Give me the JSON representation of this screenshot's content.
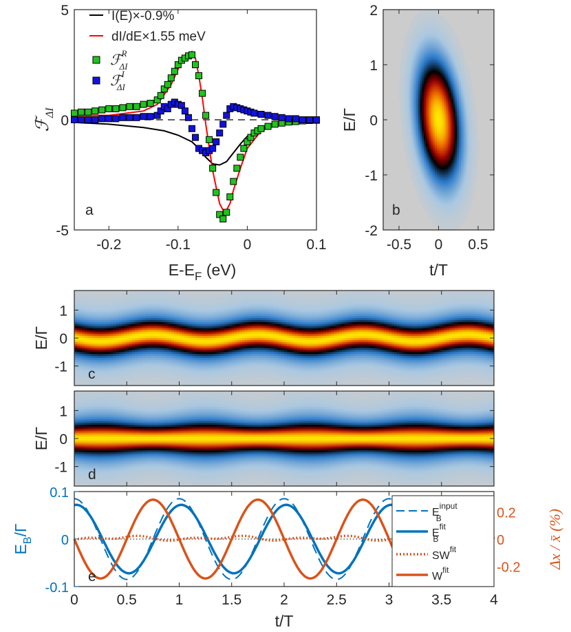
{
  "colors": {
    "black": "#000000",
    "red": "#ff0000",
    "green": "#22c31e",
    "blue": "#1212e0",
    "lineBlue": "#0072bd",
    "orange": "#d95319",
    "dotted": "#000000",
    "heatmapBg": "#cccccc"
  },
  "chart_data": [
    {
      "panel": "a",
      "type": "line+scatter",
      "panel_label": "a",
      "xlabel_prefix": "E-E",
      "xlabel_sub": "F",
      "xlabel_suffix": " (eV)",
      "ylabel_main": "ℱ",
      "ylabel_sub": "ΔI",
      "xlim": [
        -0.25,
        0.1
      ],
      "ylim": [
        -5,
        5
      ],
      "xticks": [
        -0.2,
        -0.1,
        0,
        0.1
      ],
      "xtick_labels": [
        "-0.2",
        "-0.1",
        "0",
        "0.1"
      ],
      "yticks": [
        -5,
        0,
        5
      ],
      "ytick_labels": [
        "-5",
        "0",
        "5"
      ],
      "legend": [
        {
          "label": "I(E)×-0.9%",
          "style": "black-line"
        },
        {
          "label": "dI/dE×1.55 meV",
          "style": "red-line"
        },
        {
          "label": "ℱ",
          "sup": "R",
          "sub": "ΔI",
          "style": "green-square"
        },
        {
          "label": "ℱ",
          "sup": "I",
          "sub": "ΔI",
          "style": "blue-square"
        }
      ],
      "series": [
        {
          "name": "I(E)×-0.9%",
          "x": [
            -0.25,
            -0.2,
            -0.15,
            -0.12,
            -0.1,
            -0.08,
            -0.07,
            -0.06,
            -0.05,
            -0.04,
            -0.03,
            -0.02,
            -0.01,
            0,
            0.02,
            0.05,
            0.1
          ],
          "y": [
            -0.12,
            -0.2,
            -0.35,
            -0.5,
            -0.7,
            -1.0,
            -1.3,
            -1.7,
            -2.0,
            -2.05,
            -1.9,
            -1.5,
            -1.1,
            -0.75,
            -0.4,
            -0.2,
            -0.05
          ]
        },
        {
          "name": "dI/dE×1.55 meV",
          "x": [
            -0.25,
            -0.2,
            -0.15,
            -0.13,
            -0.11,
            -0.1,
            -0.09,
            -0.08,
            -0.075,
            -0.07,
            -0.065,
            -0.06,
            -0.05,
            -0.04,
            -0.035,
            -0.03,
            -0.025,
            -0.02,
            -0.01,
            0,
            0.02,
            0.05,
            0.1
          ],
          "y": [
            0.2,
            0.2,
            0.4,
            0.7,
            1.6,
            2.3,
            2.9,
            3.1,
            2.8,
            2.0,
            1.0,
            -0.2,
            -2.3,
            -3.8,
            -4.1,
            -4.1,
            -3.8,
            -3.2,
            -2.2,
            -1.3,
            -0.5,
            -0.15,
            -0.05
          ]
        },
        {
          "name": "ℱR ΔI",
          "x": [
            -0.25,
            -0.24,
            -0.23,
            -0.22,
            -0.21,
            -0.2,
            -0.19,
            -0.18,
            -0.17,
            -0.16,
            -0.15,
            -0.14,
            -0.13,
            -0.125,
            -0.12,
            -0.115,
            -0.11,
            -0.105,
            -0.1,
            -0.095,
            -0.09,
            -0.085,
            -0.08,
            -0.075,
            -0.07,
            -0.065,
            -0.06,
            -0.055,
            -0.05,
            -0.045,
            -0.04,
            -0.035,
            -0.03,
            -0.025,
            -0.02,
            -0.015,
            -0.01,
            -0.005,
            0,
            0.005,
            0.01,
            0.015,
            0.02,
            0.03,
            0.04,
            0.05,
            0.06,
            0.07,
            0.08,
            0.09,
            0.1
          ],
          "y": [
            0.3,
            0.35,
            0.35,
            0.4,
            0.45,
            0.5,
            0.5,
            0.55,
            0.6,
            0.6,
            0.7,
            0.75,
            0.9,
            1.1,
            1.4,
            1.6,
            1.9,
            2.2,
            2.5,
            2.7,
            2.8,
            2.9,
            2.95,
            2.5,
            2.0,
            1.2,
            0.2,
            -0.9,
            -2.2,
            -3.3,
            -4.3,
            -4.5,
            -4.2,
            -3.5,
            -2.8,
            -2.2,
            -1.7,
            -1.3,
            -1.0,
            -0.8,
            -0.6,
            -0.5,
            -0.4,
            -0.3,
            -0.2,
            -0.15,
            -0.1,
            -0.08,
            -0.05,
            -0.03,
            -0.02
          ]
        },
        {
          "name": "ℱI ΔI",
          "x": [
            -0.25,
            -0.24,
            -0.23,
            -0.22,
            -0.21,
            -0.2,
            -0.19,
            -0.18,
            -0.17,
            -0.16,
            -0.15,
            -0.14,
            -0.13,
            -0.125,
            -0.12,
            -0.115,
            -0.11,
            -0.105,
            -0.1,
            -0.095,
            -0.09,
            -0.085,
            -0.08,
            -0.075,
            -0.07,
            -0.065,
            -0.06,
            -0.055,
            -0.05,
            -0.045,
            -0.04,
            -0.035,
            -0.03,
            -0.025,
            -0.02,
            -0.015,
            -0.01,
            -0.005,
            0,
            0.005,
            0.01,
            0.02,
            0.03,
            0.04,
            0.05,
            0.06,
            0.07,
            0.08,
            0.09,
            0.1
          ],
          "y": [
            0.0,
            0.0,
            0.0,
            0.0,
            0.05,
            0.05,
            0.05,
            0.1,
            0.1,
            0.1,
            0.15,
            0.15,
            0.2,
            0.4,
            0.6,
            0.5,
            0.7,
            0.8,
            0.7,
            0.65,
            0.4,
            0.1,
            -0.4,
            -0.8,
            -1.3,
            -1.4,
            -1.5,
            -1.4,
            -1.3,
            -1.0,
            -0.6,
            -0.2,
            0.2,
            0.5,
            0.6,
            0.55,
            0.5,
            0.45,
            0.4,
            0.35,
            0.3,
            0.25,
            0.2,
            0.15,
            0.1,
            0.05,
            0.05,
            0.0,
            0.0,
            0.0
          ]
        }
      ]
    },
    {
      "panel": "b",
      "type": "heatmap",
      "panel_label": "b",
      "xlabel": "t/T",
      "ylabel": "E/Γ",
      "xlim": [
        -0.7,
        0.7
      ],
      "ylim": [
        -2,
        2
      ],
      "xticks": [
        -0.5,
        0,
        0.5
      ],
      "xtick_labels": [
        "-0.5",
        "0",
        "0.5"
      ],
      "yticks": [
        -2,
        -1,
        0,
        1,
        2
      ],
      "ytick_labels": [
        "-2",
        "-1",
        "0",
        "1",
        "2"
      ],
      "blob": {
        "center_t": 0,
        "center_E": 0,
        "width_t": 0.18,
        "width_E": 0.7,
        "tilt": -0.35
      }
    },
    {
      "panel": "c",
      "type": "heatmap",
      "panel_label": "c",
      "ylabel": "E/Γ",
      "xlim": [
        0,
        4
      ],
      "ylim": [
        -1.7,
        1.7
      ],
      "yticks": [
        -1,
        0,
        1
      ],
      "ytick_labels": [
        "-1",
        "0",
        "1"
      ],
      "band": {
        "amplitude": 0.07,
        "modulation_period": 1,
        "profile": "shift"
      }
    },
    {
      "panel": "d",
      "type": "heatmap",
      "panel_label": "d",
      "ylabel": "E/Γ",
      "xlim": [
        0,
        4
      ],
      "ylim": [
        -1.7,
        1.7
      ],
      "yticks": [
        -1,
        0,
        1
      ],
      "ytick_labels": [
        "-1",
        "0",
        "1"
      ],
      "band": {
        "amplitude": 0.07,
        "modulation_period": 1,
        "profile": "width"
      }
    },
    {
      "panel": "e",
      "type": "line",
      "panel_label": "e",
      "xlabel": "t/T",
      "ylabel_left_main": "E",
      "ylabel_left_sub": "B",
      "ylabel_left_suffix": "/Γ",
      "ylabel_right": "Δx / x̄ (%)",
      "xlim": [
        0,
        4
      ],
      "ylim_left": [
        -0.1,
        0.1
      ],
      "ylim_right": [
        -0.35,
        0.35
      ],
      "xticks": [
        0,
        0.5,
        1,
        1.5,
        2,
        2.5,
        3,
        3.5,
        4
      ],
      "xtick_labels": [
        "0",
        "0.5",
        "1",
        "1.5",
        "2",
        "2.5",
        "3",
        "3.5",
        "4"
      ],
      "yticks_left": [
        -0.1,
        0,
        0.1
      ],
      "ytick_labels_left": [
        "-0.1",
        "0",
        "0.1"
      ],
      "yticks_right": [
        -0.2,
        0,
        0.2
      ],
      "ytick_labels_right": [
        "-0.2",
        "0",
        "0.2"
      ],
      "legend": [
        {
          "main": "E",
          "sup": "input",
          "sub": "B",
          "style": "blue-dashed"
        },
        {
          "main": "E",
          "sup": "fit",
          "sub": "B",
          "style": "blue-solid"
        },
        {
          "main": "SW",
          "sup": "fit",
          "sub": "",
          "style": "orange-dotted"
        },
        {
          "main": "W",
          "sup": "fit",
          "sub": "",
          "style": "orange-solid"
        }
      ],
      "series": [
        {
          "name": "E_B input",
          "axis": "left",
          "amplitude": 0.085,
          "phase": 0.25,
          "period": 1
        },
        {
          "name": "E_B fit",
          "axis": "left",
          "amplitude": 0.072,
          "phase": 0.25,
          "period": 1
        },
        {
          "name": "SW fit",
          "axis": "right",
          "amplitude": 0.02,
          "offset": 0.02,
          "period": 1
        },
        {
          "name": "W fit",
          "axis": "right",
          "amplitude": 0.29,
          "phase": 0.0,
          "period": 1
        }
      ]
    }
  ]
}
